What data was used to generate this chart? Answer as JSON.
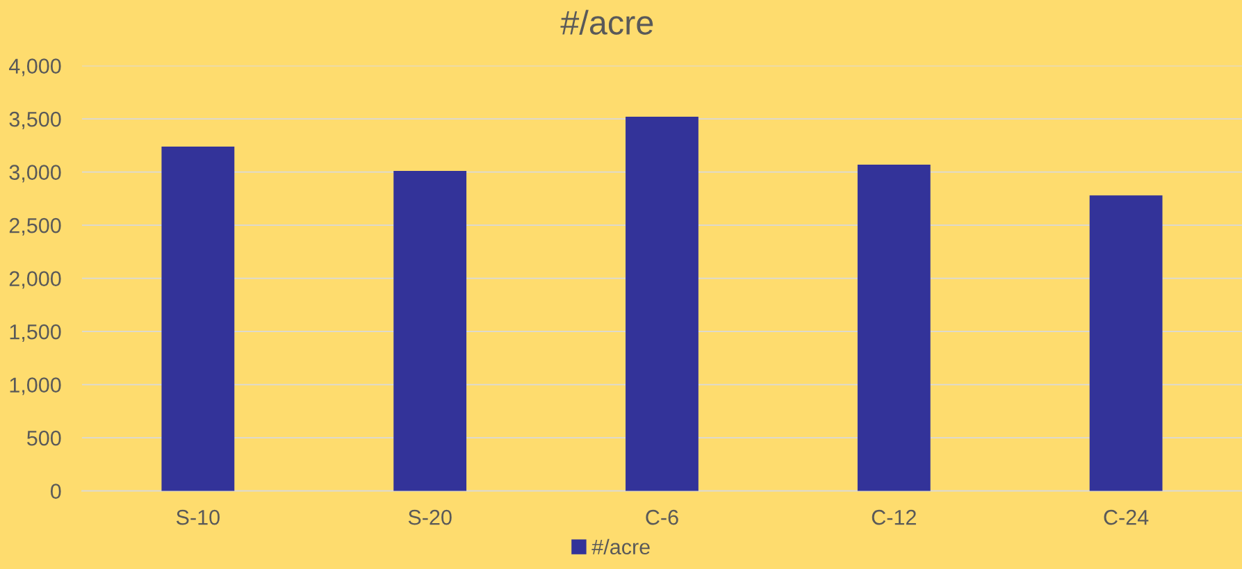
{
  "chart_data": {
    "type": "bar",
    "title": "#/acre",
    "categories": [
      "S-10",
      "S-20",
      "C-6",
      "C-12",
      "C-24"
    ],
    "series": [
      {
        "name": "#/acre",
        "color": "#333399",
        "values": [
          3240,
          3010,
          3520,
          3070,
          2780
        ]
      }
    ],
    "ylim": [
      0,
      4000
    ],
    "yticks": [
      0,
      500,
      {
        "value": 1000,
        "label": "1,000"
      },
      {
        "value": 1500,
        "label": "1,500"
      },
      {
        "value": 2000,
        "label": "2,000"
      },
      {
        "value": 2500,
        "label": "2,500"
      },
      {
        "value": 3000,
        "label": "3,000"
      },
      {
        "value": 3500,
        "label": "3,500"
      },
      {
        "value": 4000,
        "label": "4,000"
      }
    ],
    "grid": "y",
    "legend": "bottom"
  }
}
